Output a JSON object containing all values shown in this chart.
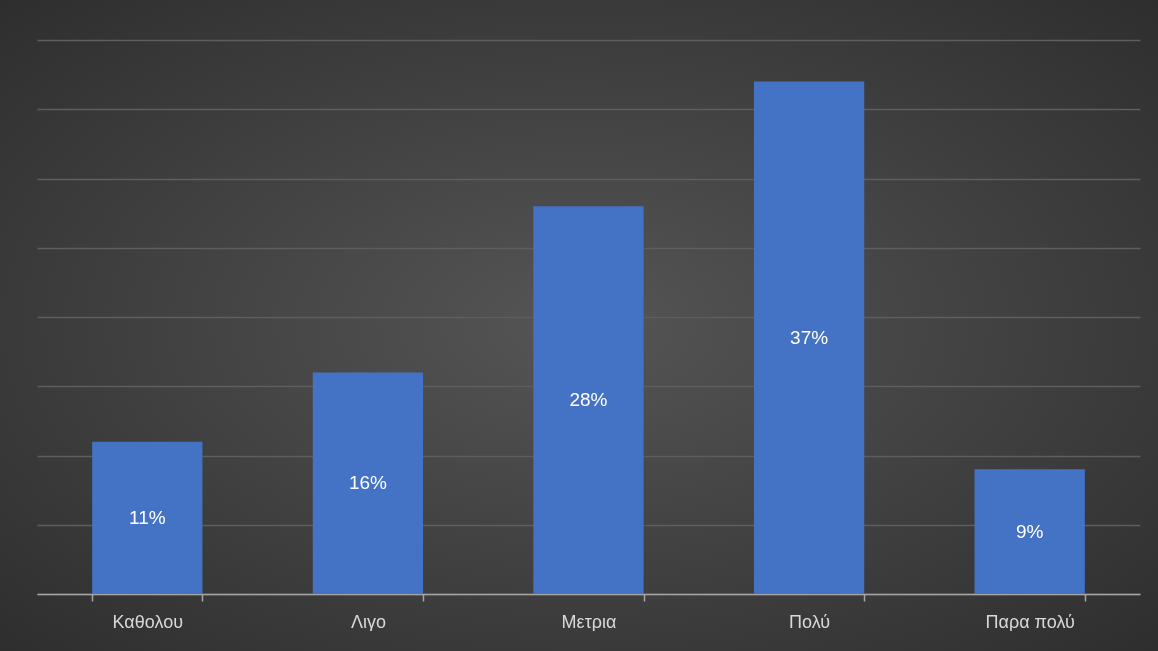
{
  "chart_data": {
    "type": "bar",
    "categories": [
      "Καθολου",
      "Λιγο",
      "Μετρια",
      "Πολύ",
      "Παρα πολύ"
    ],
    "values": [
      11,
      16,
      28,
      37,
      9
    ],
    "value_labels": [
      "11%",
      "16%",
      "28%",
      "37%",
      "9%"
    ],
    "color": "#4472c4",
    "ylim": [
      0,
      40
    ],
    "yticks": [
      {
        "value": 0,
        "label": null
      },
      {
        "value": 5,
        "label": null
      },
      {
        "value": 10,
        "label": null
      },
      {
        "value": 15,
        "label": null
      },
      {
        "value": 20,
        "label": null
      },
      {
        "value": 25,
        "label": null
      },
      {
        "value": 30,
        "label": null
      },
      {
        "value": 35,
        "label": null
      },
      {
        "value": 40,
        "label": null
      }
    ],
    "grid": "y",
    "tick_labels": "x"
  }
}
